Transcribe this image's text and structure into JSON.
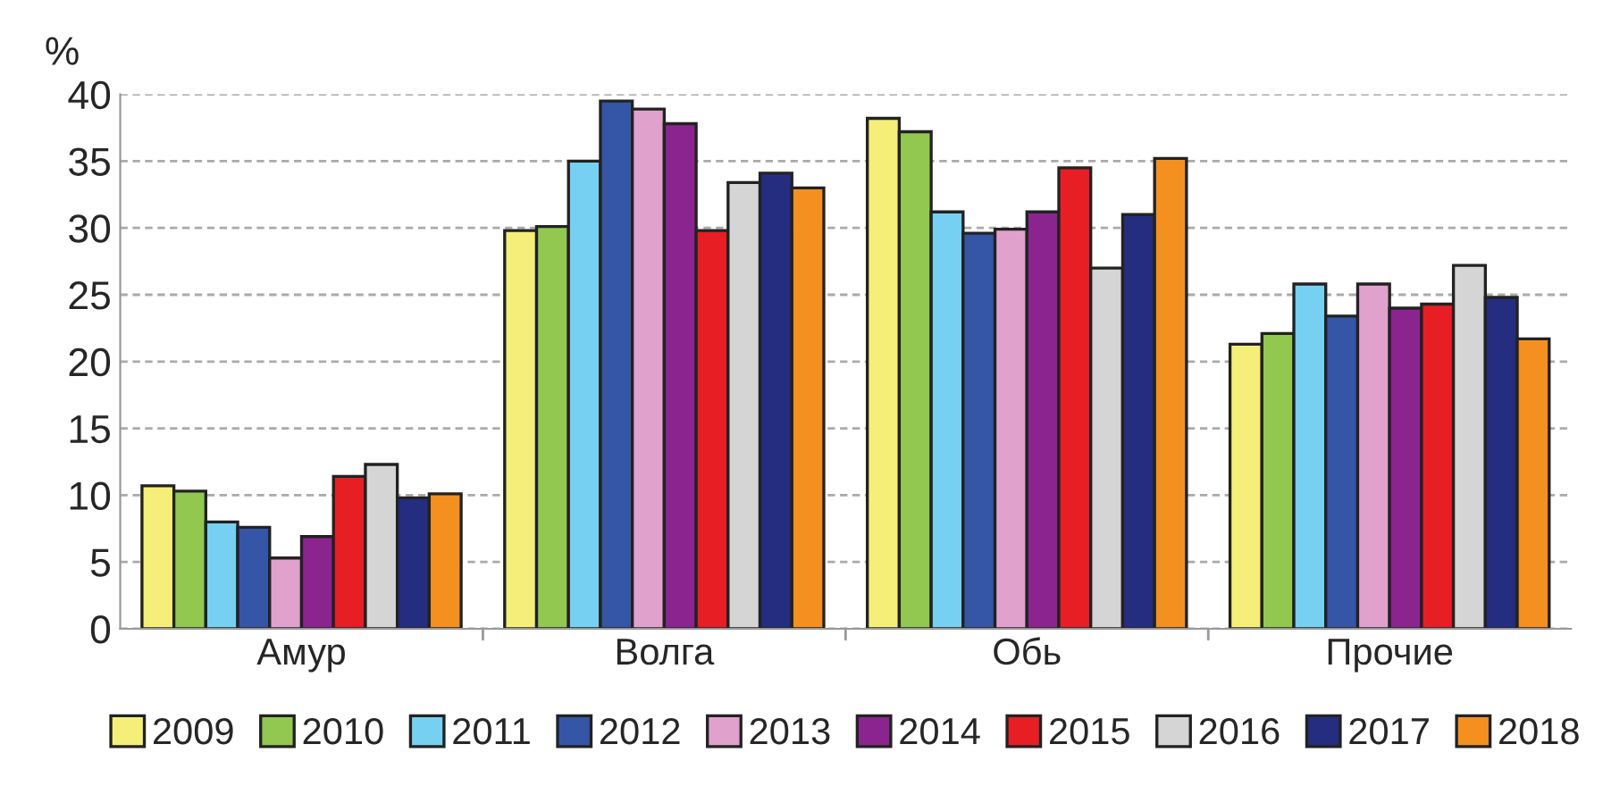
{
  "chart_data": {
    "type": "bar",
    "ylabel": "%",
    "categories": [
      "Амур",
      "Волга",
      "Обь",
      "Прочие"
    ],
    "series": [
      {
        "name": "2009",
        "color": "#f5ef7a",
        "values": [
          10.7,
          29.8,
          38.2,
          21.3
        ]
      },
      {
        "name": "2010",
        "color": "#92c850",
        "values": [
          10.3,
          30.1,
          37.2,
          22.1
        ]
      },
      {
        "name": "2011",
        "color": "#76d0f2",
        "values": [
          8.0,
          35.0,
          31.2,
          25.8
        ]
      },
      {
        "name": "2012",
        "color": "#3556a6",
        "values": [
          7.6,
          39.5,
          29.6,
          23.4
        ]
      },
      {
        "name": "2013",
        "color": "#e0a2cc",
        "values": [
          5.3,
          38.9,
          29.9,
          25.8
        ]
      },
      {
        "name": "2014",
        "color": "#8c2490",
        "values": [
          6.9,
          37.8,
          31.2,
          24.0
        ]
      },
      {
        "name": "2015",
        "color": "#e81e25",
        "values": [
          11.4,
          29.8,
          34.5,
          24.3
        ]
      },
      {
        "name": "2016",
        "color": "#d5d5d5",
        "values": [
          12.3,
          33.4,
          27.0,
          27.2
        ]
      },
      {
        "name": "2017",
        "color": "#252d80",
        "values": [
          9.8,
          34.1,
          31.0,
          24.8
        ]
      },
      {
        "name": "2018",
        "color": "#f39020",
        "values": [
          10.1,
          33.0,
          35.2,
          21.7
        ]
      }
    ],
    "ylim": [
      0,
      40
    ],
    "yticks": [
      0,
      5,
      10,
      15,
      20,
      25,
      30,
      35,
      40
    ],
    "grid": "y",
    "legend": "bottom"
  }
}
